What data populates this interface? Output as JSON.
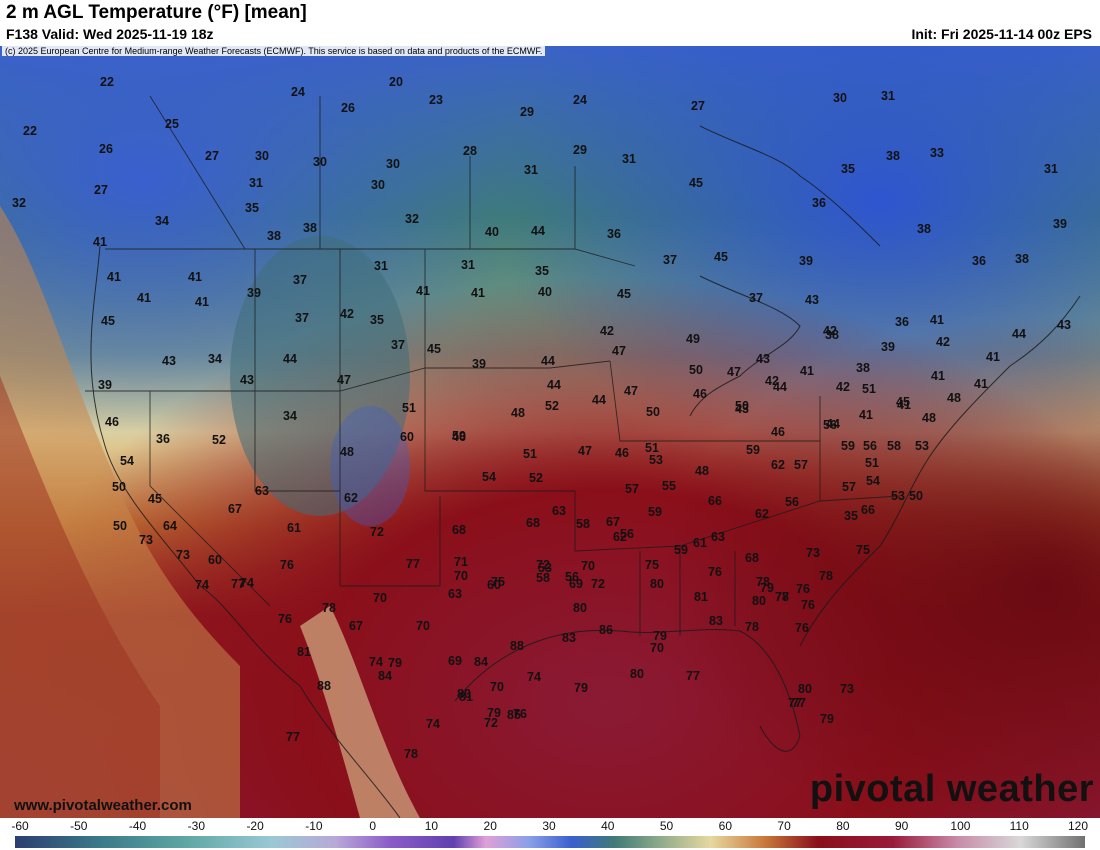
{
  "header": {
    "title": "2 m AGL Temperature (°F) [mean]",
    "valid": "F138 Valid: Wed 2025-11-19 18z",
    "init": "Init: Fri 2025-11-14 00z EPS",
    "copyright": "(c) 2025 European Centre for Medium-range Weather Forecasts (ECMWF). This service is based on data and products of the ECMWF."
  },
  "footer": {
    "website": "www.pivotalweather.com",
    "brand": "pivotal weather"
  },
  "colorbar": {
    "ticks": [
      "-60",
      "-50",
      "-40",
      "-30",
      "-20",
      "-10",
      "0",
      "10",
      "20",
      "30",
      "40",
      "50",
      "60",
      "70",
      "80",
      "90",
      "100",
      "110",
      "120"
    ]
  },
  "colors": {
    "cold": "#3a5fcf",
    "cool": "#3f7a78",
    "mild": "#e8d8a0",
    "warm": "#c97a3a",
    "hot": "#8a0f1a",
    "very_hot": "#9a1a3a"
  },
  "map_values": [
    "22",
    "24",
    "20",
    "23",
    "26",
    "24",
    "27",
    "22",
    "25",
    "26",
    "27",
    "30",
    "29",
    "28",
    "30",
    "30",
    "29",
    "31",
    "31",
    "27",
    "30",
    "31",
    "31",
    "30",
    "45",
    "38",
    "33",
    "31",
    "32",
    "34",
    "35",
    "35",
    "32",
    "40",
    "44",
    "36",
    "36",
    "39",
    "41",
    "38",
    "38",
    "41",
    "37",
    "31",
    "31",
    "35",
    "37",
    "45",
    "39",
    "38",
    "41",
    "41",
    "41",
    "39",
    "37",
    "35",
    "36",
    "38",
    "41",
    "41",
    "40",
    "45",
    "37",
    "43",
    "45",
    "43",
    "34",
    "42",
    "36",
    "41",
    "44",
    "43",
    "38",
    "39",
    "42",
    "44",
    "37",
    "45",
    "39",
    "44",
    "42",
    "47",
    "49",
    "47",
    "43",
    "42",
    "38",
    "41",
    "41",
    "39",
    "43",
    "44",
    "44",
    "47",
    "50",
    "50",
    "46",
    "43",
    "42",
    "44",
    "41",
    "42",
    "51",
    "46",
    "34",
    "47",
    "51",
    "46",
    "48",
    "52",
    "51",
    "50",
    "46",
    "44",
    "48",
    "41",
    "48",
    "41",
    "41",
    "45",
    "36",
    "52",
    "48",
    "60",
    "59",
    "54",
    "51",
    "52",
    "47",
    "46",
    "53",
    "48",
    "59",
    "62",
    "57",
    "56",
    "59",
    "56",
    "58",
    "51",
    "53",
    "54",
    "50",
    "45",
    "63",
    "62",
    "57",
    "55",
    "57",
    "54",
    "53",
    "50",
    "66",
    "63",
    "67",
    "66",
    "62",
    "56",
    "35",
    "50",
    "64",
    "67",
    "68",
    "68",
    "58",
    "59",
    "61",
    "56",
    "61",
    "72",
    "71",
    "70",
    "72",
    "70",
    "73",
    "73",
    "60",
    "62",
    "59",
    "63",
    "68",
    "73",
    "75",
    "77",
    "74",
    "76",
    "77",
    "75",
    "53",
    "56",
    "72",
    "75",
    "76",
    "78",
    "79",
    "78",
    "76",
    "78",
    "74",
    "63",
    "60",
    "58",
    "69",
    "80",
    "81",
    "80",
    "77",
    "76",
    "78",
    "76",
    "70",
    "67",
    "70",
    "80",
    "83",
    "86",
    "79",
    "83",
    "78",
    "76",
    "81",
    "79",
    "74",
    "69",
    "84",
    "88",
    "70",
    "80",
    "77",
    "80",
    "79",
    "74",
    "88",
    "84",
    "80",
    "70",
    "76",
    "72",
    "77",
    "73",
    "77",
    "78",
    "81",
    "79",
    "74",
    "85",
    "79",
    "77"
  ]
}
